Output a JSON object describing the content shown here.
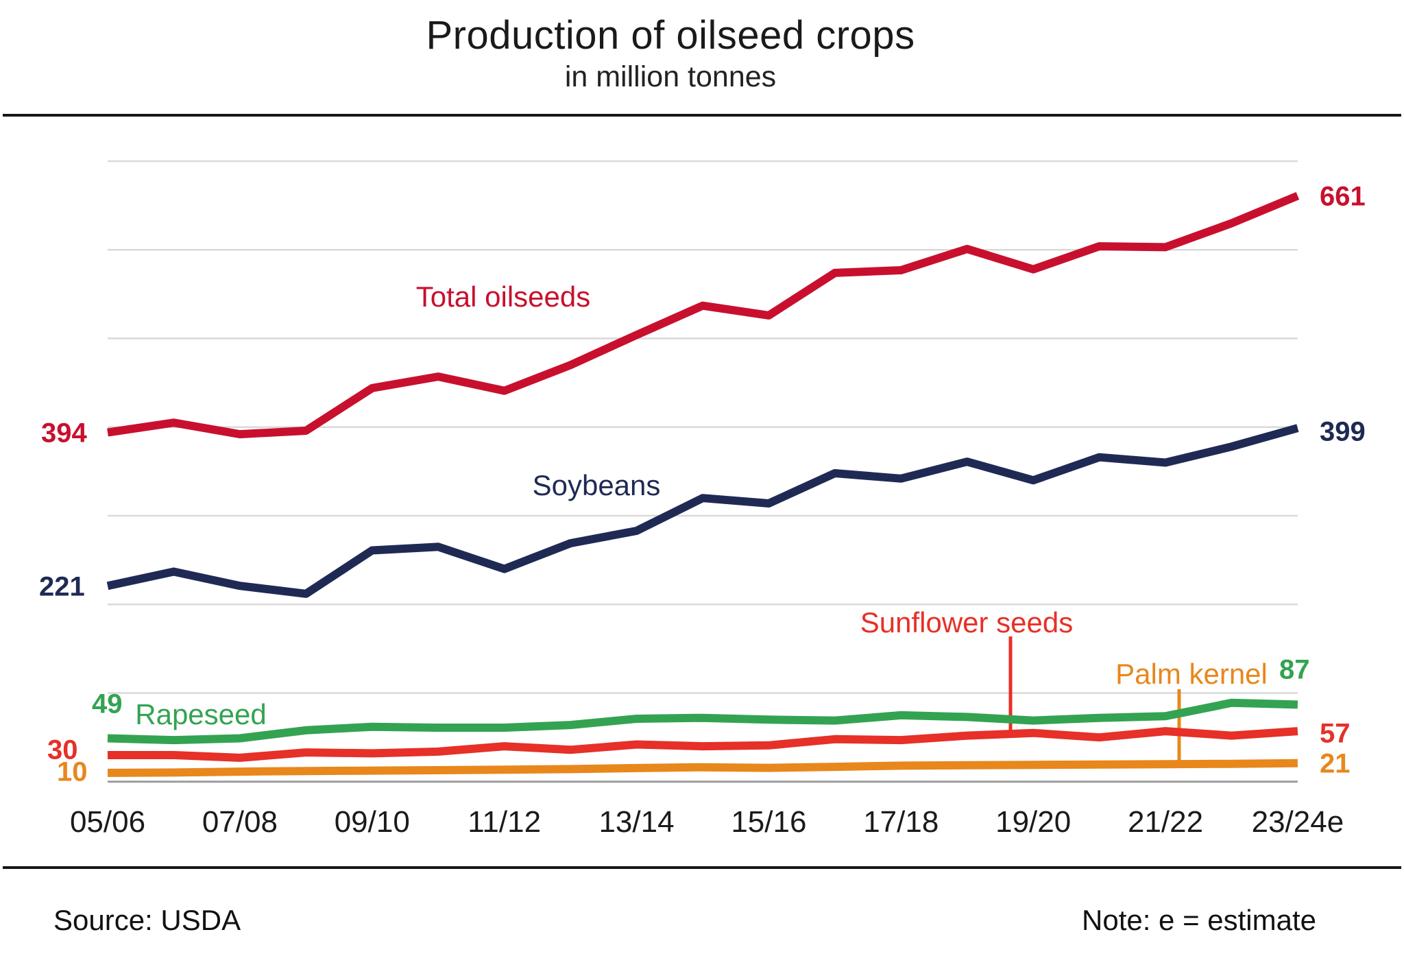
{
  "title": "Production of oilseed crops",
  "subtitle": "in million tonnes",
  "footer": {
    "source": "Source: USDA",
    "note": "Note: e = estimate"
  },
  "colors": {
    "total_oilseeds": "#c8102e",
    "soybeans": "#1f2a54",
    "rapeseed": "#33a352",
    "sunflower_seeds": "#e63028",
    "palm_kernel": "#e8871b",
    "gridline": "#d9d9d9",
    "axis_line": "#9b9b9b",
    "rule": "#161616"
  },
  "chart_data": {
    "type": "line",
    "title": "Production of oilseed crops",
    "subtitle": "in million tonnes",
    "categories": [
      "05/06",
      "06/07",
      "07/08",
      "08/09",
      "09/10",
      "10/11",
      "11/12",
      "12/13",
      "13/14",
      "14/15",
      "15/16",
      "16/17",
      "17/18",
      "18/19",
      "19/20",
      "20/21",
      "21/22",
      "22/23",
      "23/24e"
    ],
    "x_tick_labels": [
      "05/06",
      "07/08",
      "09/10",
      "11/12",
      "13/14",
      "15/16",
      "17/18",
      "19/20",
      "21/22",
      "23/24e"
    ],
    "ylim": [
      0,
      740
    ],
    "grid": "horizontal gridlines every 100, no y tick labels",
    "legend_position": "inline labels next to lines",
    "series": [
      {
        "name": "Total oilseeds",
        "color": "#c8102e",
        "start_label": "394",
        "end_label": "661",
        "values": [
          394,
          405,
          392,
          396,
          444,
          457,
          441,
          470,
          504,
          537,
          526,
          574,
          577,
          601,
          578,
          604,
          603,
          630,
          661
        ]
      },
      {
        "name": "Soybeans",
        "color": "#1f2a54",
        "start_label": "221",
        "end_label": "399",
        "values": [
          221,
          237,
          221,
          212,
          261,
          265,
          240,
          269,
          283,
          320,
          314,
          348,
          342,
          361,
          340,
          366,
          360,
          378,
          399
        ]
      },
      {
        "name": "Rapeseed",
        "color": "#33a352",
        "start_label": "49",
        "end_label": "87",
        "values": [
          49,
          47,
          49,
          58,
          62,
          61,
          61,
          64,
          71,
          72,
          70,
          69,
          75,
          73,
          69,
          72,
          74,
          89,
          87
        ]
      },
      {
        "name": "Sunflower seeds",
        "color": "#e63028",
        "start_label": "30",
        "end_label": "57",
        "values": [
          30,
          30,
          27,
          33,
          32,
          34,
          40,
          36,
          42,
          40,
          41,
          48,
          47,
          52,
          55,
          50,
          57,
          52,
          57
        ]
      },
      {
        "name": "Palm kernel",
        "color": "#e8871b",
        "start_label": "10",
        "end_label": "21",
        "values": [
          10,
          10.4,
          11.4,
          12.1,
          12.5,
          13,
          13.6,
          14.2,
          15.4,
          16.3,
          15.6,
          16.8,
          18.1,
          18.6,
          19,
          19.4,
          19.7,
          20.2,
          21
        ]
      }
    ],
    "annotations": [
      {
        "series": "Sunflower seeds",
        "type": "pointer-line"
      },
      {
        "series": "Palm kernel",
        "type": "pointer-line"
      }
    ]
  }
}
